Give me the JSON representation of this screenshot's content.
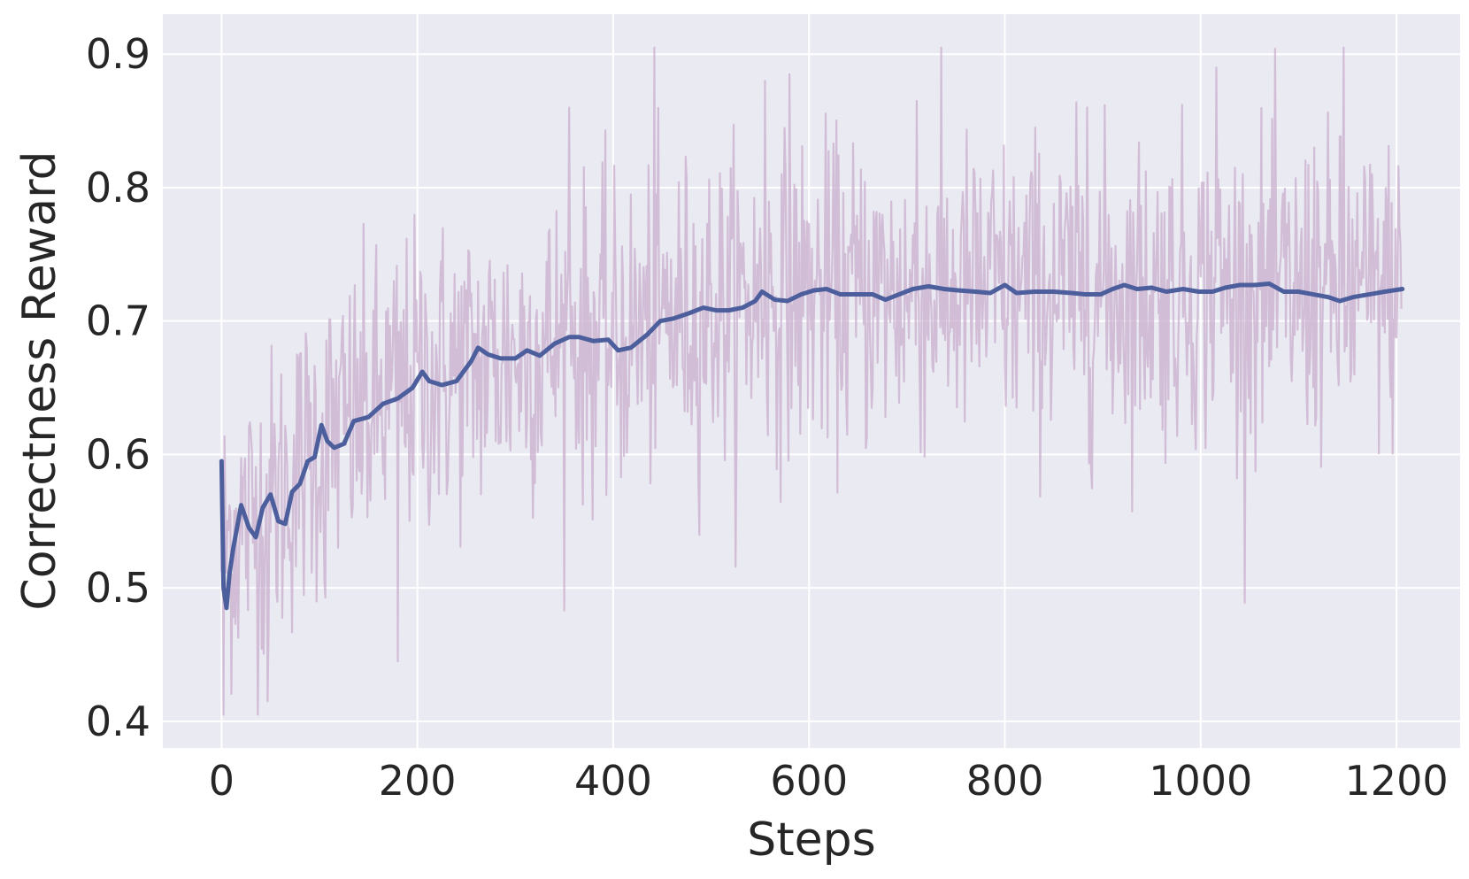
{
  "chart_data": {
    "type": "line",
    "xlabel": "Steps",
    "ylabel": "Correctness Reward",
    "xlim": [
      -60,
      1265
    ],
    "ylim": [
      0.38,
      0.93
    ],
    "xticks": [
      0,
      200,
      400,
      600,
      800,
      1000,
      1200
    ],
    "yticks": [
      0.4,
      0.5,
      0.6,
      0.7,
      0.8,
      0.9
    ],
    "grid": true,
    "background": "#EAEAF2",
    "grid_color": "#FFFFFF",
    "raw_series": {
      "color": "#C9AECD",
      "opacity": 0.75,
      "n_points": 1206,
      "trend": [
        [
          0,
          0.53
        ],
        [
          10,
          0.54
        ],
        [
          30,
          0.55
        ],
        [
          60,
          0.57
        ],
        [
          100,
          0.61
        ],
        [
          150,
          0.63
        ],
        [
          200,
          0.655
        ],
        [
          250,
          0.665
        ],
        [
          300,
          0.675
        ],
        [
          350,
          0.685
        ],
        [
          400,
          0.685
        ],
        [
          450,
          0.7
        ],
        [
          500,
          0.71
        ],
        [
          550,
          0.715
        ],
        [
          600,
          0.72
        ],
        [
          700,
          0.72
        ],
        [
          800,
          0.722
        ],
        [
          900,
          0.722
        ],
        [
          1000,
          0.724
        ],
        [
          1100,
          0.72
        ],
        [
          1206,
          0.722
        ]
      ],
      "noise_std": 0.058,
      "min": 0.405,
      "max": 0.905,
      "spikes": [
        [
          2,
          0.405
        ],
        [
          47,
          0.415
        ],
        [
          105,
          0.505
        ],
        [
          180,
          0.445
        ],
        [
          355,
          0.86
        ],
        [
          442,
          0.905
        ],
        [
          555,
          0.88
        ],
        [
          580,
          0.885
        ],
        [
          710,
          0.865
        ],
        [
          884,
          0.86
        ],
        [
          1016,
          0.89
        ],
        [
          1116,
          0.83
        ],
        [
          1146,
          0.905
        ]
      ]
    },
    "smoothed_series": {
      "color": "#4C5F9C",
      "line_width": 5,
      "points": [
        [
          0,
          0.595
        ],
        [
          2,
          0.5
        ],
        [
          5,
          0.485
        ],
        [
          8,
          0.51
        ],
        [
          12,
          0.53
        ],
        [
          20,
          0.562
        ],
        [
          28,
          0.545
        ],
        [
          35,
          0.538
        ],
        [
          42,
          0.56
        ],
        [
          50,
          0.57
        ],
        [
          58,
          0.55
        ],
        [
          65,
          0.548
        ],
        [
          72,
          0.572
        ],
        [
          80,
          0.578
        ],
        [
          88,
          0.595
        ],
        [
          95,
          0.598
        ],
        [
          102,
          0.622
        ],
        [
          108,
          0.61
        ],
        [
          115,
          0.605
        ],
        [
          125,
          0.608
        ],
        [
          135,
          0.625
        ],
        [
          150,
          0.628
        ],
        [
          165,
          0.638
        ],
        [
          180,
          0.642
        ],
        [
          195,
          0.65
        ],
        [
          205,
          0.662
        ],
        [
          212,
          0.655
        ],
        [
          225,
          0.652
        ],
        [
          240,
          0.655
        ],
        [
          255,
          0.67
        ],
        [
          262,
          0.68
        ],
        [
          272,
          0.675
        ],
        [
          285,
          0.672
        ],
        [
          300,
          0.672
        ],
        [
          312,
          0.678
        ],
        [
          325,
          0.674
        ],
        [
          340,
          0.683
        ],
        [
          355,
          0.688
        ],
        [
          365,
          0.688
        ],
        [
          380,
          0.685
        ],
        [
          395,
          0.686
        ],
        [
          405,
          0.678
        ],
        [
          418,
          0.68
        ],
        [
          435,
          0.69
        ],
        [
          448,
          0.7
        ],
        [
          462,
          0.702
        ],
        [
          478,
          0.706
        ],
        [
          492,
          0.71
        ],
        [
          505,
          0.708
        ],
        [
          518,
          0.708
        ],
        [
          532,
          0.71
        ],
        [
          545,
          0.715
        ],
        [
          552,
          0.722
        ],
        [
          565,
          0.716
        ],
        [
          578,
          0.715
        ],
        [
          592,
          0.72
        ],
        [
          605,
          0.723
        ],
        [
          618,
          0.724
        ],
        [
          632,
          0.72
        ],
        [
          648,
          0.72
        ],
        [
          665,
          0.72
        ],
        [
          678,
          0.716
        ],
        [
          692,
          0.72
        ],
        [
          706,
          0.724
        ],
        [
          722,
          0.726
        ],
        [
          738,
          0.724
        ],
        [
          752,
          0.723
        ],
        [
          770,
          0.722
        ],
        [
          785,
          0.721
        ],
        [
          800,
          0.727
        ],
        [
          812,
          0.721
        ],
        [
          830,
          0.722
        ],
        [
          850,
          0.722
        ],
        [
          868,
          0.721
        ],
        [
          882,
          0.72
        ],
        [
          898,
          0.72
        ],
        [
          910,
          0.724
        ],
        [
          922,
          0.727
        ],
        [
          935,
          0.724
        ],
        [
          950,
          0.725
        ],
        [
          965,
          0.722
        ],
        [
          982,
          0.724
        ],
        [
          998,
          0.722
        ],
        [
          1012,
          0.722
        ],
        [
          1025,
          0.725
        ],
        [
          1040,
          0.727
        ],
        [
          1055,
          0.727
        ],
        [
          1070,
          0.728
        ],
        [
          1085,
          0.722
        ],
        [
          1100,
          0.722
        ],
        [
          1115,
          0.72
        ],
        [
          1130,
          0.718
        ],
        [
          1142,
          0.715
        ],
        [
          1156,
          0.718
        ],
        [
          1172,
          0.72
        ],
        [
          1188,
          0.722
        ],
        [
          1206,
          0.724
        ]
      ]
    }
  }
}
